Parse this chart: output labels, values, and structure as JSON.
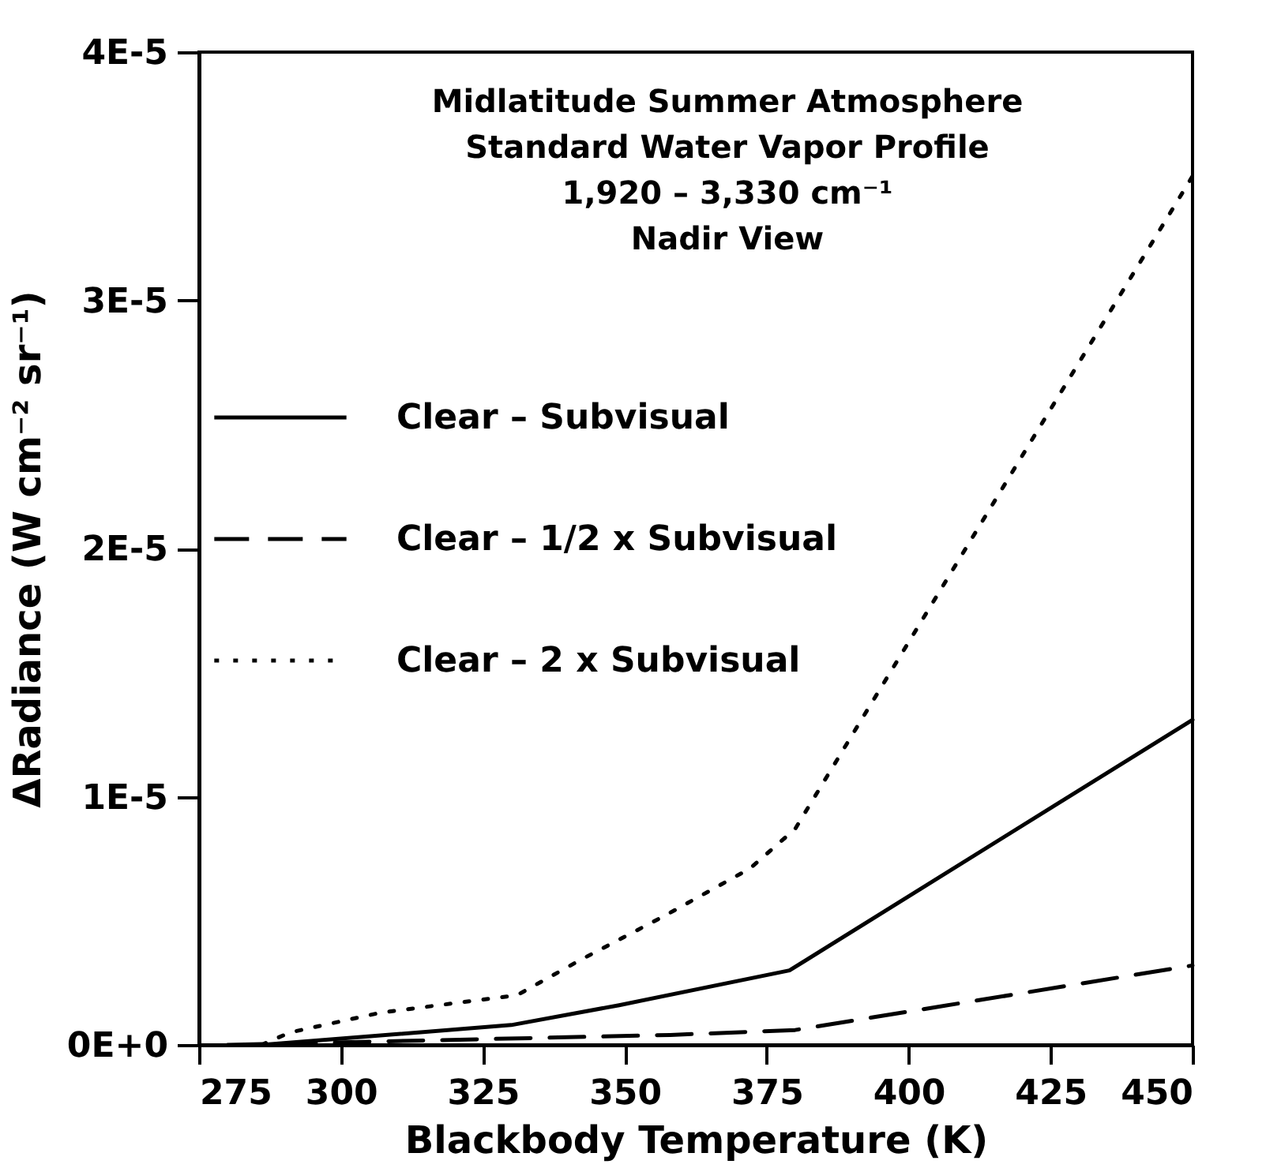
{
  "chart_data": {
    "type": "line",
    "title": "Midlatitude Summer Atmosphere",
    "subtitle": "Standard Water Vapor Profile\n1,920 – 3,330 cm⁻¹\nNadir View",
    "xlabel": "Blackbody Temperature (K)",
    "ylabel": "ΔRadiance (W cm⁻² sr⁻¹)",
    "xlim": [
      275,
      450
    ],
    "xticks": [
      275,
      300,
      325,
      350,
      375,
      400,
      425,
      450
    ],
    "ylim": [
      0,
      4e-05
    ],
    "yticks": [
      {
        "value": 0,
        "label": "0E+0"
      },
      {
        "value": 1e-05,
        "label": "1E-5"
      },
      {
        "value": 2e-05,
        "label": "2E-5"
      },
      {
        "value": 3e-05,
        "label": "3E-5"
      },
      {
        "value": 4e-05,
        "label": "4E-5"
      }
    ],
    "legend": "left",
    "grid": false,
    "marker": "none",
    "series": [
      {
        "name": "Clear – Subvisual",
        "color": "#000000",
        "line_style": "solid",
        "x": [
          286,
          330,
          349,
          379,
          450
        ],
        "values": [
          0,
          8e-07,
          1.6e-06,
          3e-06,
          1.31e-05
        ]
      },
      {
        "name": "Clear – 1/2 x Subvisual",
        "color": "#000000",
        "line_style": "dashed",
        "x": [
          280,
          358,
          380,
          450
        ],
        "values": [
          0,
          4e-07,
          6e-07,
          3.2e-06
        ]
      },
      {
        "name": "Clear – 2 x Subvisual",
        "color": "#000000",
        "line_style": "dotted",
        "x": [
          286,
          291,
          307,
          331,
          342,
          357,
          372,
          380,
          393,
          450
        ],
        "values": [
          0,
          5e-07,
          1.3e-06,
          2e-06,
          3.4e-06,
          5.2e-06,
          7.1e-06,
          8.7e-06,
          1.36e-05,
          3.5e-05
        ]
      }
    ]
  }
}
